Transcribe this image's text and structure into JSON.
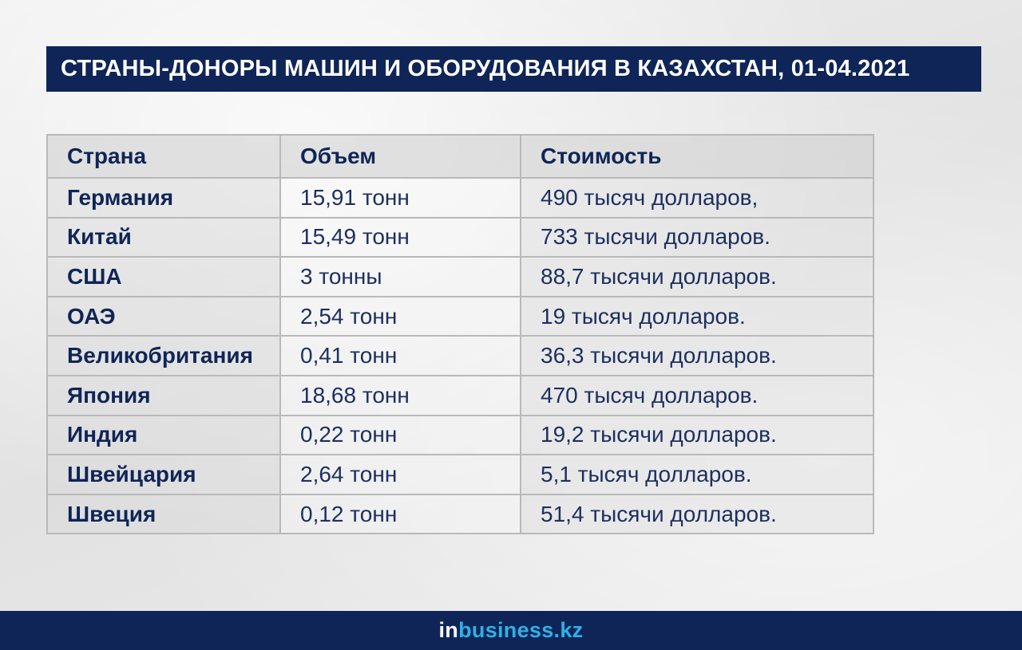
{
  "title": "СТРАНЫ-ДОНОРЫ МАШИН И ОБОРУДОВАНИЯ В КАЗАХСТАН, 01-04.2021",
  "table": {
    "headers": [
      "Страна",
      "Объем",
      "Стоимость"
    ],
    "rows": [
      [
        "Германия",
        "15,91 тонн",
        "490 тысяч долларов,"
      ],
      [
        "Китай",
        "15,49 тонн",
        "733 тысячи долларов."
      ],
      [
        "США",
        "3 тонны",
        "88,7 тысячи долларов."
      ],
      [
        "ОАЭ",
        "2,54 тонн",
        "19 тысяч долларов."
      ],
      [
        "Великобритания",
        "0,41 тонн",
        "36,3 тысячи долларов."
      ],
      [
        "Япония",
        "18,68 тонн",
        "470 тысяч долларов."
      ],
      [
        "Индия",
        "0,22 тонн",
        "19,2 тысячи долларов."
      ],
      [
        "Швейцария",
        "2,64 тонн",
        "5,1 тысяч долларов."
      ],
      [
        "Швеция",
        "0,12 тонн",
        "51,4 тысячи долларов."
      ]
    ]
  },
  "footer": {
    "logo_in": "in",
    "logo_rest": "business.kz"
  },
  "colors": {
    "navy": "#0f2557",
    "logo_blue": "#2fb0e5"
  }
}
